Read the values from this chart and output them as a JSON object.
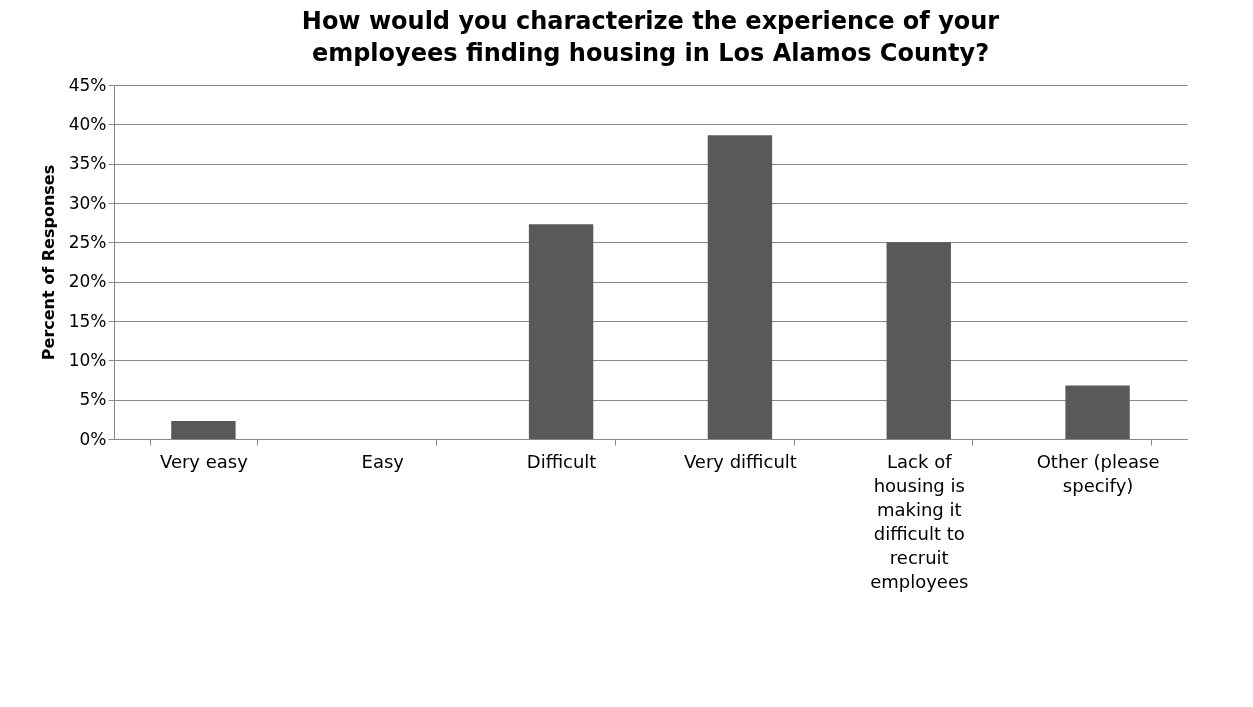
{
  "chart_data": {
    "type": "bar",
    "title": "How would you characterize the experience of your employees finding housing in Los Alamos County?",
    "ylabel": "Percent of Responses",
    "categories": [
      "Very easy",
      "Easy",
      "Difficult",
      "Very difficult",
      "Lack of housing is making it difficult to recruit employees",
      "Other (please specify)"
    ],
    "values": [
      2.3,
      0,
      27.3,
      38.6,
      25.0,
      6.8
    ],
    "color": "#595959",
    "ylim": [
      0,
      45
    ],
    "yticks": [
      {
        "value": 0,
        "label": "0%"
      },
      {
        "value": 5,
        "label": "5%"
      },
      {
        "value": 10,
        "label": "10%"
      },
      {
        "value": 15,
        "label": "15%"
      },
      {
        "value": 20,
        "label": "20%"
      },
      {
        "value": 25,
        "label": "25%"
      },
      {
        "value": 30,
        "label": "30%"
      },
      {
        "value": 35,
        "label": "35%"
      },
      {
        "value": 40,
        "label": "40%"
      },
      {
        "value": 45,
        "label": "45%"
      }
    ],
    "grid": "y"
  }
}
